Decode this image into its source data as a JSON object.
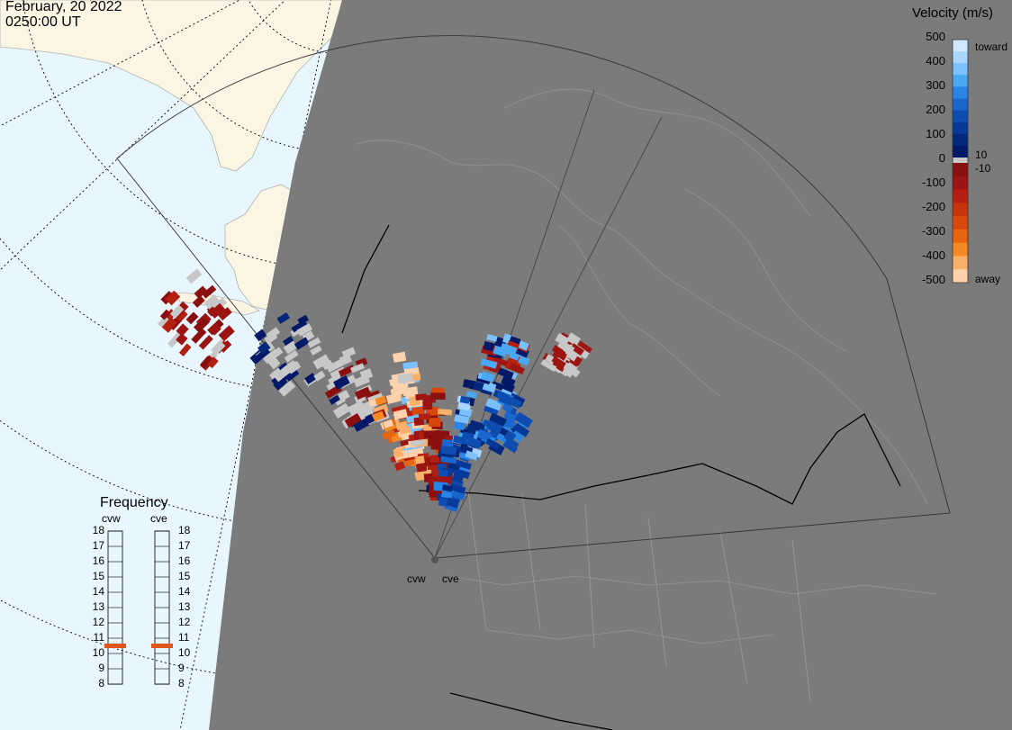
{
  "header": {
    "date": "February, 20 2022",
    "time": "0250:00 UT"
  },
  "colorbar": {
    "title": "Velocity (m/s)",
    "ticks": [
      "500",
      "400",
      "300",
      "200",
      "100",
      "0",
      "-100",
      "-200",
      "-300",
      "-400",
      "-500"
    ],
    "toward_label": "toward",
    "away_label": "away",
    "inner_pos": "10",
    "inner_neg": "-10",
    "colors": [
      "#cfe8ff",
      "#a9d6ff",
      "#7cc1ff",
      "#4aa7f2",
      "#2a86e6",
      "#1a66cc",
      "#0e4cb0",
      "#073a98",
      "#04287c",
      "#031866",
      "#8a1010",
      "#9c1512",
      "#b41f10",
      "#c8340c",
      "#d8480a",
      "#e86410",
      "#f58a24",
      "#fbb06a",
      "#fdd2ac"
    ],
    "ground_color": "#c8c8c8"
  },
  "frequency": {
    "title": "Frequency",
    "radars": [
      "cvw",
      "cve"
    ],
    "levels": [
      "18",
      "17",
      "16",
      "15",
      "14",
      "13",
      "12",
      "11",
      "10",
      "9",
      "8"
    ],
    "current_mhz": [
      11,
      11
    ],
    "marker_color": "#e0561a"
  },
  "radar_sites": [
    "cvw",
    "cve"
  ],
  "map_colors": {
    "night": "#7b7b7b",
    "ocean": "#e8f6ff",
    "land_day": "#fbf6e4",
    "borders": "#000000"
  }
}
